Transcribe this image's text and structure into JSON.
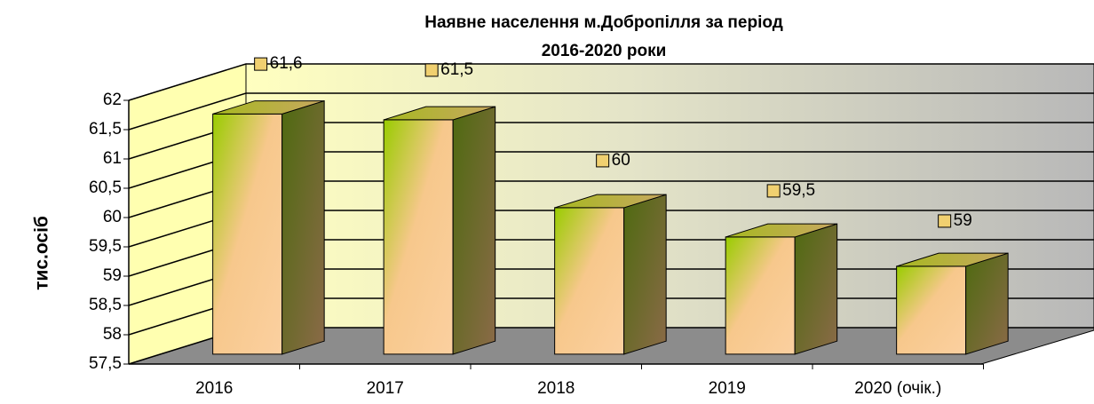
{
  "chart_data": {
    "type": "bar3d",
    "title": "Наявне населення м.Добропілля за період",
    "subtitle": "2016-2020 роки",
    "y_label": "тис.осіб",
    "categories": [
      "2016",
      "2017",
      "2018",
      "2019",
      "2020 (очік.)"
    ],
    "values": [
      61.6,
      61.5,
      60,
      59.5,
      59
    ],
    "value_labels": [
      "61,6",
      "61,5",
      "60",
      "59,5",
      "59"
    ],
    "ylim": [
      57.5,
      62
    ],
    "yticks": [
      {
        "value": 57.5,
        "label": "57,5"
      },
      58,
      {
        "value": 58.5,
        "label": "58,5"
      },
      59,
      {
        "value": 59.5,
        "label": "59,5"
      },
      60,
      {
        "value": 60.5,
        "label": "60,5"
      },
      61,
      {
        "value": 61.5,
        "label": "61,5"
      },
      62
    ],
    "grid": true
  }
}
